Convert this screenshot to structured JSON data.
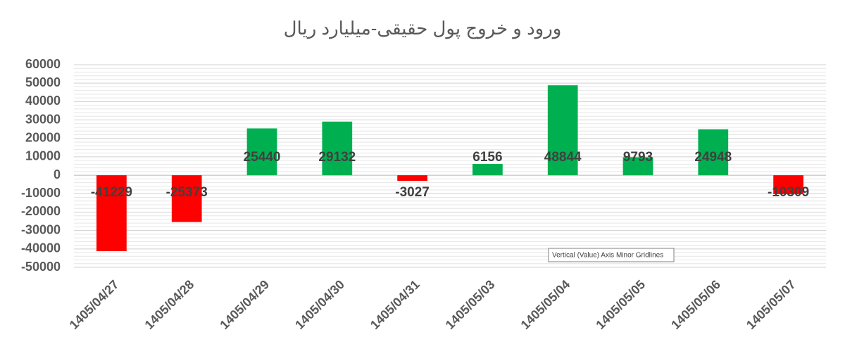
{
  "chart_data": {
    "type": "bar",
    "title": "ورود و خروج پول حقیقی-میلیارد ریال",
    "categories": [
      "1405/04/27",
      "1405/04/28",
      "1405/04/29",
      "1405/04/30",
      "1405/04/31",
      "1405/05/03",
      "1405/05/04",
      "1405/05/05",
      "1405/05/06",
      "1405/05/07"
    ],
    "values": [
      -41229,
      -25373,
      25440,
      29132,
      -3027,
      6156,
      48844,
      9793,
      24948,
      -10309
    ],
    "colors": [
      "#ff0000",
      "#ff0000",
      "#00b050",
      "#00b050",
      "#ff0000",
      "#00b050",
      "#00b050",
      "#00b050",
      "#00b050",
      "#ff0000"
    ],
    "ylim": [
      -50000,
      60000
    ],
    "yticks": [
      -50000,
      -40000,
      -30000,
      -20000,
      -10000,
      0,
      10000,
      20000,
      30000,
      40000,
      50000,
      60000
    ],
    "grid": true,
    "minor_grid": true,
    "tooltip": "Vertical (Value) Axis Minor Gridlines"
  }
}
